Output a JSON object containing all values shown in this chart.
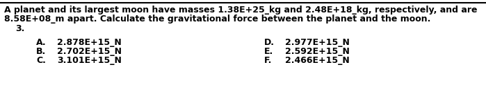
{
  "title_line1": "A planet and its largest moon have masses 1.38E+25_kg and 2.48E+18_kg, respectively, and are",
  "title_line2": "8.58E+08_m apart. Calculate the gravitational force between the planet and the moon.",
  "question_number": "3.",
  "options_left_label": [
    "A.",
    "B.",
    "C."
  ],
  "options_left_value": [
    "2.878E+15_N",
    "2.702E+15_N",
    "3.101E+15_N"
  ],
  "options_right_label": [
    "D.",
    "E.",
    "F."
  ],
  "options_right_value": [
    "2.977E+15_N",
    "2.592E+15_N",
    "2.466E+15_N"
  ],
  "bg_color": "#ffffff",
  "text_color": "#000000",
  "border_color": "#000000",
  "font_size_title": 9.0,
  "font_size_number": 9.0,
  "font_size_options": 9.0,
  "fig_width": 6.99,
  "fig_height": 1.62,
  "dpi": 100
}
